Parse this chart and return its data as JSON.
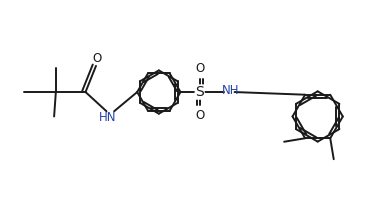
{
  "background_color": "#ffffff",
  "line_color": "#1a1a1a",
  "line_width": 1.4,
  "font_size": 8.5,
  "figsize": [
    3.84,
    2.19
  ],
  "dpi": 100,
  "xlim": [
    0,
    11
  ],
  "ylim": [
    0,
    6
  ]
}
